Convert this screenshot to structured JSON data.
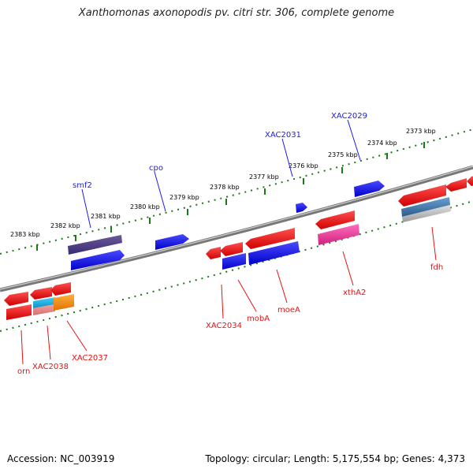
{
  "title": "Xanthomonas axonopodis pv. citri str. 306, complete genome",
  "footer": {
    "accession": "Accession: NC_003919",
    "stats": "Topology: circular; Length: 5,175,554 bp; Genes: 4,373"
  },
  "colors": {
    "forward_strand": "#1a1aee",
    "reverse_strand": "#e81010",
    "backbone": "#888888",
    "tick": "#1a7a1a",
    "forward_label": "#1a1aee",
    "reverse_label": "#e81010"
  },
  "scale_ticks": [
    "2383 kbp",
    "2382 kbp",
    "2381 kbp",
    "2380 kbp",
    "2379 kbp",
    "2378 kbp",
    "2377 kbp",
    "2376 kbp",
    "2375 kbp",
    "2374 kbp",
    "2373 kbp"
  ],
  "forward_labels": [
    "smf2",
    "cpo",
    "XAC2031",
    "XAC2029"
  ],
  "reverse_labels": [
    "orn",
    "XAC2038",
    "XAC2037",
    "XAC2034",
    "mobA",
    "moeA",
    "xthA2",
    "fdh"
  ]
}
